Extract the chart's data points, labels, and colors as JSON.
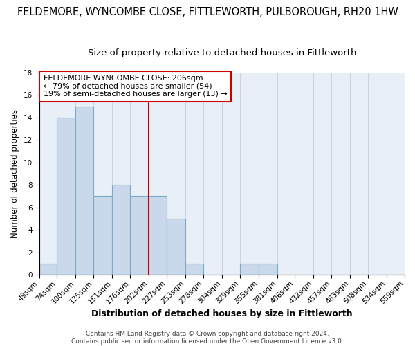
{
  "title_line1": "FELDEMORE, WYNCOMBE CLOSE, FITTLEWORTH, PULBOROUGH, RH20 1HW",
  "title_line2": "Size of property relative to detached houses in Fittleworth",
  "xlabel": "Distribution of detached houses by size in Fittleworth",
  "ylabel": "Number of detached properties",
  "bin_labels": [
    "49sqm",
    "74sqm",
    "100sqm",
    "125sqm",
    "151sqm",
    "176sqm",
    "202sqm",
    "227sqm",
    "253sqm",
    "278sqm",
    "304sqm",
    "329sqm",
    "355sqm",
    "381sqm",
    "406sqm",
    "432sqm",
    "457sqm",
    "483sqm",
    "508sqm",
    "534sqm",
    "559sqm"
  ],
  "bin_edges": [
    49,
    74,
    100,
    125,
    151,
    176,
    202,
    227,
    253,
    278,
    304,
    329,
    355,
    381,
    406,
    432,
    457,
    483,
    508,
    534,
    559
  ],
  "bar_heights": [
    1,
    14,
    15,
    7,
    8,
    7,
    7,
    5,
    1,
    0,
    0,
    1,
    1,
    0,
    0,
    0,
    0,
    0,
    0,
    0
  ],
  "vline_x": 202,
  "annotation_text": "FELDEMORE WYNCOMBE CLOSE: 206sqm\n← 79% of detached houses are smaller (54)\n19% of semi-detached houses are larger (13) →",
  "bar_color": "#c9d8ea",
  "bar_edge_color": "#7aaac8",
  "vline_color": "#cc0000",
  "annotation_box_color": "#ffffff",
  "annotation_box_edge": "#cc0000",
  "background_color": "#ffffff",
  "plot_bg_color": "#e8eff7",
  "grid_color": "#c5d0de",
  "ylim": [
    0,
    18
  ],
  "yticks": [
    0,
    2,
    4,
    6,
    8,
    10,
    12,
    14,
    16,
    18
  ],
  "footnote": "Contains HM Land Registry data © Crown copyright and database right 2024.\nContains public sector information licensed under the Open Government Licence v3.0.",
  "title_fontsize": 10.5,
  "subtitle_fontsize": 9.5,
  "xlabel_fontsize": 9,
  "ylabel_fontsize": 8.5,
  "tick_fontsize": 7.5,
  "annotation_fontsize": 8,
  "footnote_fontsize": 6.5
}
